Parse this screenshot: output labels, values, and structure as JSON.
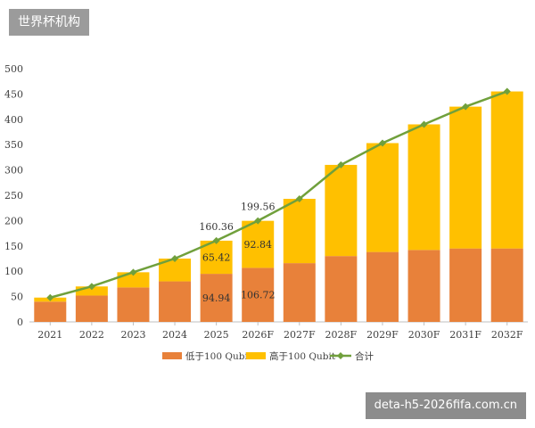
{
  "header": {
    "badge": "世界杯机构"
  },
  "watermark": "deta-h5-2026fifa.com.cn",
  "colors": {
    "low": "#E8813A",
    "high": "#FFC000",
    "total": "#70A03C",
    "axis": "#bfbfbf",
    "text": "#404040"
  },
  "chart_data": {
    "type": "bar",
    "stacked": true,
    "categories": [
      "2021",
      "2022",
      "2023",
      "2024",
      "2025",
      "2026F",
      "2027F",
      "2028F",
      "2029F",
      "2030F",
      "2031F",
      "2032F"
    ],
    "series": [
      {
        "name": "低于100 Qubit",
        "values": [
          40,
          52,
          68,
          80,
          94.94,
          106.72,
          116,
          130,
          138,
          142,
          145,
          145
        ]
      },
      {
        "name": "高于100 Qubit",
        "values": [
          8,
          18,
          30,
          45,
          65.42,
          92.84,
          127,
          180,
          215,
          248,
          280,
          310
        ]
      },
      {
        "name": "合计",
        "type": "line",
        "values": [
          48,
          70,
          98,
          125,
          160.36,
          199.56,
          243,
          310,
          353,
          390,
          425,
          455
        ]
      }
    ],
    "data_labels": [
      {
        "category": "2025",
        "series": "低于100 Qubit",
        "text": "94.94"
      },
      {
        "category": "2025",
        "series": "高于100 Qubit",
        "text": "65.42"
      },
      {
        "category": "2025",
        "series": "合计",
        "text": "160.36"
      },
      {
        "category": "2026F",
        "series": "低于100 Qubit",
        "text": "106.72"
      },
      {
        "category": "2026F",
        "series": "高于100 Qubit",
        "text": "92.84"
      },
      {
        "category": "2026F",
        "series": "合计",
        "text": "199.56"
      }
    ],
    "yticks": [
      0,
      50,
      100,
      150,
      200,
      250,
      300,
      350,
      400,
      450,
      500
    ],
    "ylim": [
      0,
      500
    ],
    "legend_position": "bottom",
    "grid": false
  }
}
